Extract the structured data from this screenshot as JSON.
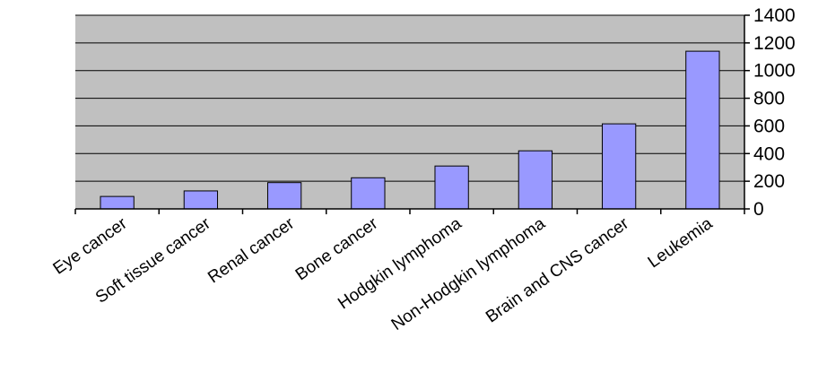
{
  "chart_data": {
    "type": "bar",
    "title": "",
    "xlabel": "",
    "ylabel": "",
    "categories": [
      "Eye cancer",
      "Soft tissue cancer",
      "Renal cancer",
      "Bone cancer",
      "Hodgkin lymphoma",
      "Non-Hodgkin lymphoma",
      "Brain and CNS  cancer",
      "Leukemia"
    ],
    "values": [
      90,
      130,
      190,
      225,
      310,
      420,
      615,
      1140
    ],
    "ylim": [
      0,
      1400
    ],
    "yticks": [
      0,
      200,
      400,
      600,
      800,
      1000,
      1200,
      1400
    ],
    "y_axis_side": "right",
    "grid": true,
    "legend": "none",
    "colors": {
      "bar_fill": "#9999ff",
      "bar_stroke": "#000000",
      "plot_background": "#c0c0c0",
      "gridline": "#000000"
    }
  }
}
